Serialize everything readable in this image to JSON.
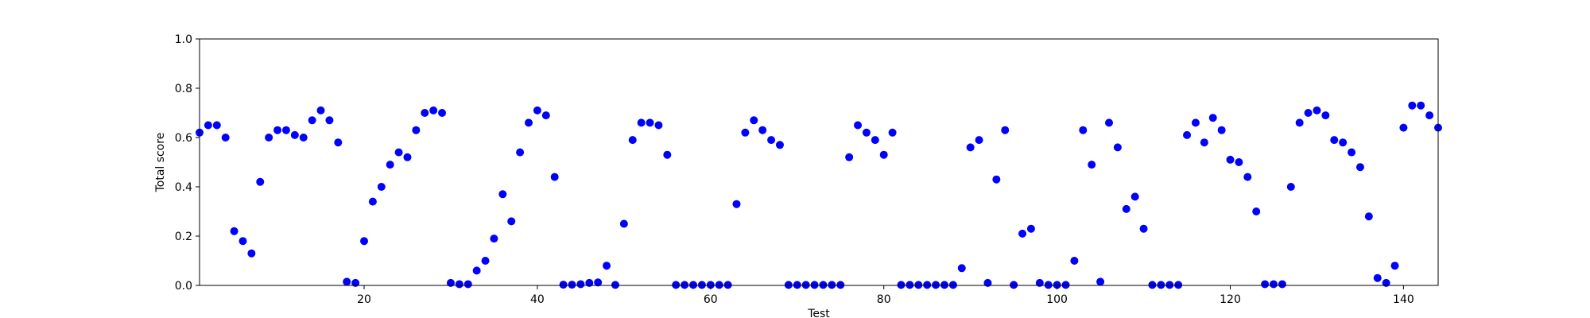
{
  "chart_data": {
    "type": "scatter",
    "title": "",
    "xlabel": "Test",
    "ylabel": "Total score",
    "xlim": [
      1,
      144
    ],
    "ylim": [
      0.0,
      1.0
    ],
    "xticks": [
      20,
      40,
      60,
      80,
      100,
      120,
      140
    ],
    "yticks": [
      0.0,
      0.2,
      0.4,
      0.6,
      0.8,
      1.0
    ],
    "ytick_labels": [
      "0.0",
      "0.2",
      "0.4",
      "0.6",
      "0.8",
      "1.0"
    ],
    "grid": false,
    "marker_color": "#0000ff",
    "series": [
      {
        "x": [
          1,
          2,
          3,
          4,
          5,
          6,
          7,
          8,
          9,
          10,
          11,
          12,
          13,
          14,
          15,
          16,
          17,
          18,
          19,
          20,
          21,
          22,
          23,
          24,
          25,
          26,
          27,
          28,
          29,
          30,
          31,
          32,
          33,
          34,
          35,
          36,
          37,
          38,
          39,
          40,
          41,
          42,
          43,
          44,
          45,
          46,
          47,
          48,
          49,
          50,
          51,
          52,
          53,
          54,
          55,
          56,
          57,
          58,
          59,
          60,
          61,
          62,
          63,
          64,
          65,
          66,
          67,
          68,
          69,
          70,
          71,
          72,
          73,
          74,
          75,
          76,
          77,
          78,
          79,
          80,
          81,
          82,
          83,
          84,
          85,
          86,
          87,
          88,
          89,
          90,
          91,
          92,
          93,
          94,
          95,
          96,
          97,
          98,
          99,
          100,
          101,
          102,
          103,
          104,
          105,
          106,
          107,
          108,
          109,
          110,
          111,
          112,
          113,
          114,
          115,
          116,
          117,
          118,
          119,
          120,
          121,
          122,
          123,
          124,
          125,
          126,
          127,
          128,
          129,
          130,
          131,
          132,
          133,
          134,
          135,
          136,
          137,
          138,
          139,
          140,
          141,
          142,
          143,
          144
        ],
        "y": [
          0.62,
          0.65,
          0.65,
          0.6,
          0.22,
          0.18,
          0.13,
          0.42,
          0.6,
          0.63,
          0.63,
          0.61,
          0.6,
          0.67,
          0.71,
          0.67,
          0.58,
          0.015,
          0.01,
          0.18,
          0.34,
          0.4,
          0.49,
          0.54,
          0.52,
          0.63,
          0.7,
          0.71,
          0.7,
          0.01,
          0.005,
          0.005,
          0.06,
          0.1,
          0.19,
          0.37,
          0.26,
          0.54,
          0.66,
          0.71,
          0.69,
          0.44,
          0.003,
          0.003,
          0.005,
          0.01,
          0.012,
          0.08,
          0.002,
          0.25,
          0.59,
          0.66,
          0.66,
          0.65,
          0.53,
          0.002,
          0.002,
          0.002,
          0.002,
          0.002,
          0.002,
          0.002,
          0.33,
          0.62,
          0.67,
          0.63,
          0.59,
          0.57,
          0.002,
          0.002,
          0.002,
          0.002,
          0.002,
          0.002,
          0.002,
          0.52,
          0.65,
          0.62,
          0.59,
          0.53,
          0.62,
          0.002,
          0.002,
          0.002,
          0.002,
          0.002,
          0.002,
          0.002,
          0.07,
          0.56,
          0.59,
          0.01,
          0.43,
          0.63,
          0.002,
          0.21,
          0.23,
          0.01,
          0.002,
          0.002,
          0.002,
          0.1,
          0.63,
          0.49,
          0.015,
          0.66,
          0.56,
          0.31,
          0.36,
          0.23,
          0.002,
          0.002,
          0.002,
          0.002,
          0.61,
          0.66,
          0.58,
          0.68,
          0.63,
          0.51,
          0.5,
          0.44,
          0.3,
          0.005,
          0.005,
          0.005,
          0.4,
          0.66,
          0.7,
          0.71,
          0.69,
          0.59,
          0.58,
          0.54,
          0.48,
          0.28,
          0.03,
          0.01,
          0.08,
          0.64,
          0.73,
          0.73,
          0.69,
          0.64
        ]
      }
    ]
  }
}
